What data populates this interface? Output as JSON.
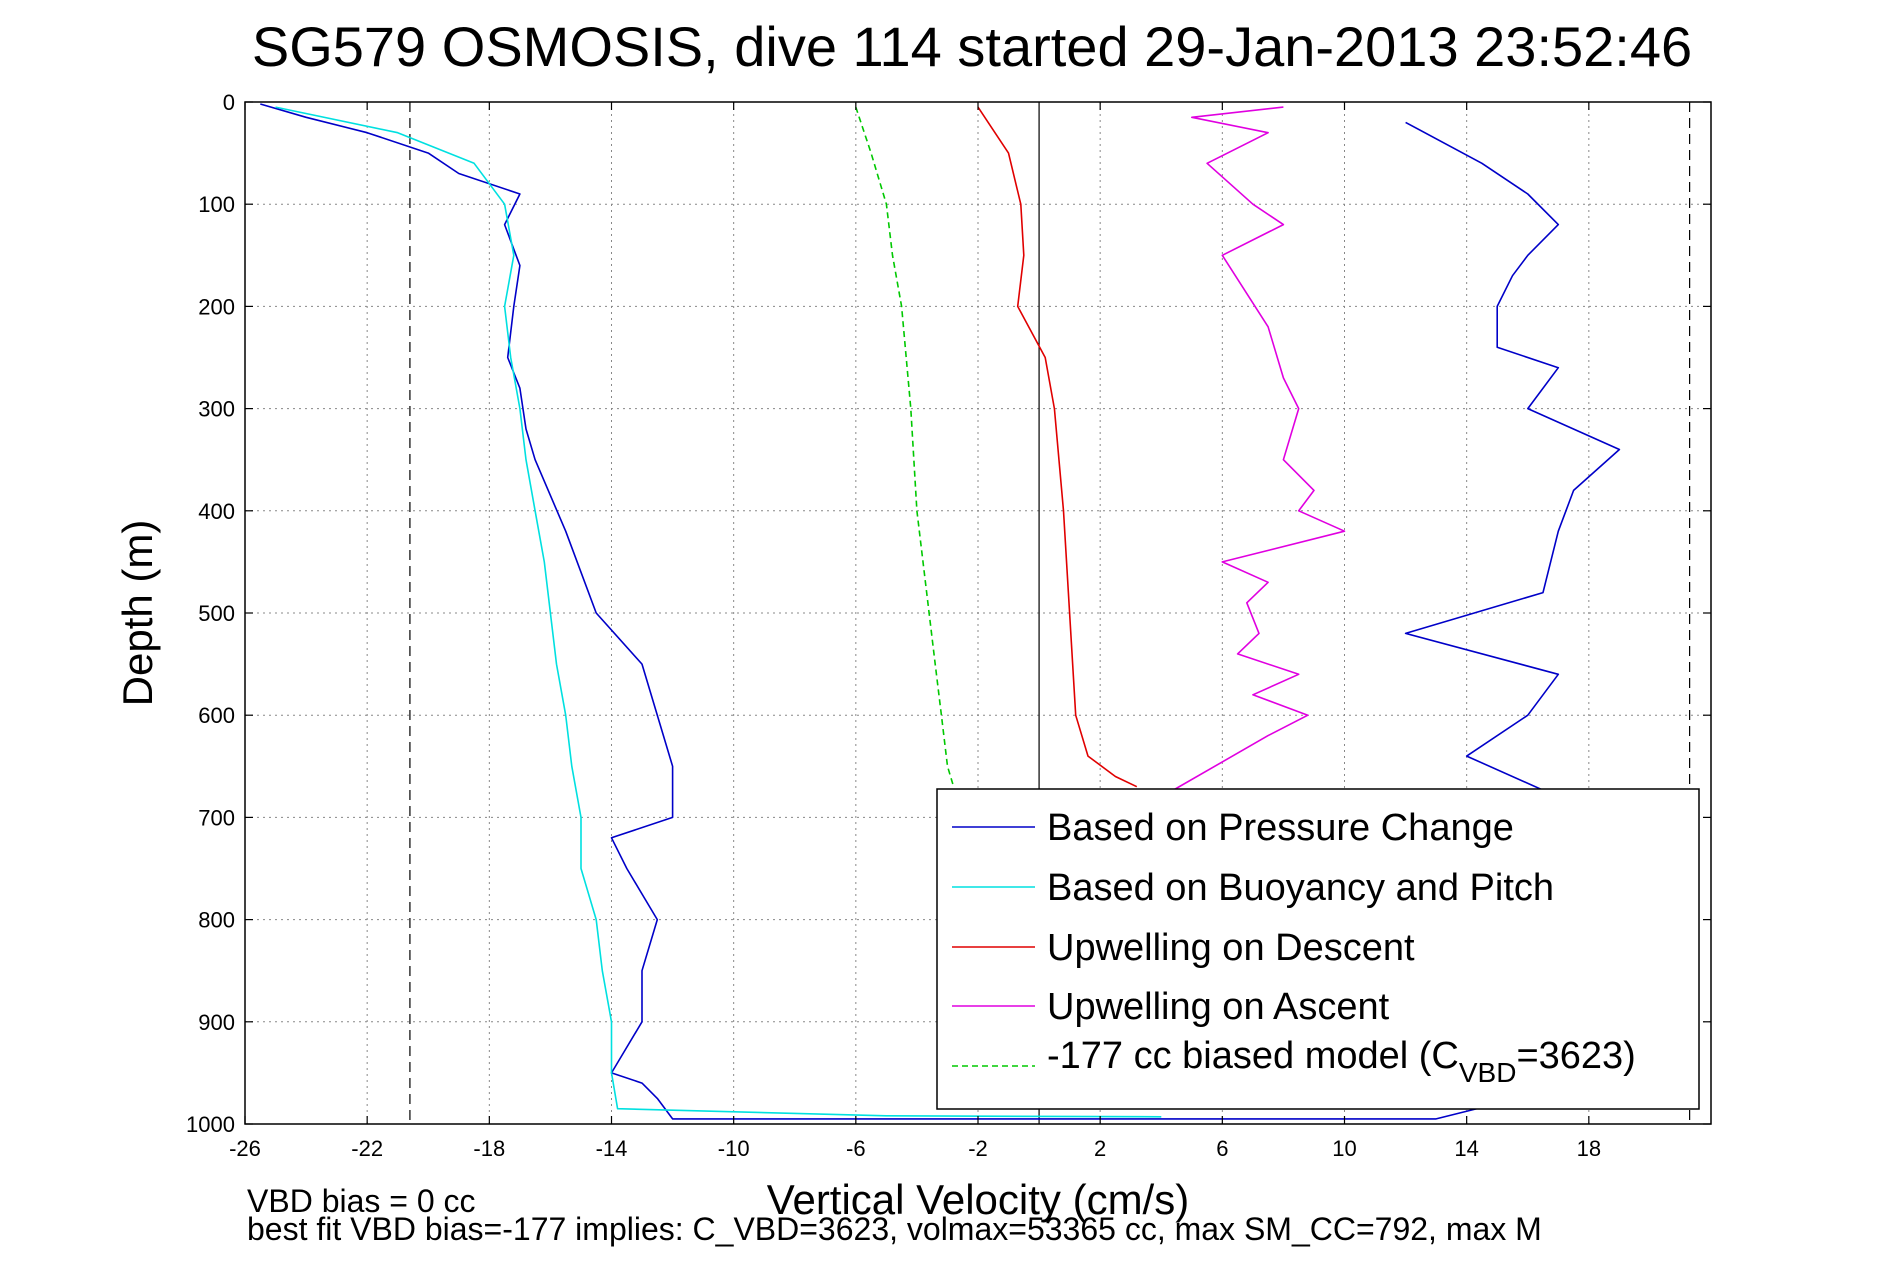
{
  "chart_data": {
    "type": "line",
    "title": "SG579 OSMOSIS, dive 114 started 29-Jan-2013 23:52:46",
    "xlabel": "Vertical Velocity (cm/s)",
    "ylabel": "Depth (m)",
    "xlim": [
      -26,
      22
    ],
    "ylim": [
      0,
      1000
    ],
    "y_reversed": true,
    "grid": true,
    "legend_position": "bottom-right",
    "x_ticks": [
      -26,
      -22,
      -18,
      -14,
      -10,
      -6,
      -2,
      2,
      6,
      10,
      14,
      18
    ],
    "y_ticks": [
      0,
      100,
      200,
      300,
      400,
      500,
      600,
      700,
      800,
      900,
      1000
    ],
    "reference_lines": [
      -20.6,
      0,
      21.3
    ],
    "annotations": [
      "VBD bias = 0 cc",
      "best fit VBD bias=-177 implies: C_VBD=3623, volmax=53365 cc, max SM_CC=792, max M"
    ],
    "series": [
      {
        "name": "Based on Pressure Change",
        "color": "#0000c8",
        "style": "solid",
        "x": [
          -25.5,
          -24,
          -22,
          -20,
          -19,
          -17,
          -17.5,
          -17,
          -17.2,
          -17.4,
          -17,
          -16.8,
          -16.5,
          -15.5,
          -14.5,
          -13,
          -12,
          -12,
          -14,
          -13.5,
          -12.5,
          -13,
          -13,
          -14,
          -13,
          -12.5,
          -12,
          13,
          15,
          17,
          14,
          16,
          17,
          12,
          16.5,
          17,
          17.5,
          19,
          16,
          17,
          15,
          15,
          15,
          15.5,
          16,
          17,
          16,
          14.5,
          12
        ],
        "y": [
          2,
          15,
          30,
          50,
          70,
          90,
          120,
          160,
          200,
          250,
          280,
          320,
          350,
          420,
          500,
          550,
          650,
          700,
          720,
          750,
          800,
          850,
          900,
          950,
          960,
          975,
          995,
          995,
          980,
          680,
          640,
          600,
          560,
          520,
          480,
          420,
          380,
          340,
          300,
          260,
          240,
          220,
          200,
          170,
          150,
          120,
          90,
          60,
          20
        ]
      },
      {
        "name": "Based on Buoyancy and Pitch",
        "color": "#00e0e0",
        "style": "solid",
        "x": [
          -25,
          -21,
          -18.5,
          -17.5,
          -17.2,
          -17.5,
          -17.3,
          -17,
          -16.8,
          -16.5,
          -16.2,
          -16,
          -15.8,
          -15.5,
          -15.3,
          -15,
          -15,
          -14.5,
          -14.3,
          -14,
          -14,
          -13.8,
          -5,
          4
        ],
        "y": [
          5,
          30,
          60,
          100,
          150,
          200,
          250,
          300,
          350,
          400,
          450,
          500,
          550,
          600,
          650,
          700,
          750,
          800,
          850,
          900,
          950,
          985,
          992,
          993
        ]
      },
      {
        "name": "Upwelling on Descent",
        "color": "#e00000",
        "style": "solid",
        "x": [
          -2,
          -1,
          -0.6,
          -0.5,
          -0.7,
          0.2,
          0.5,
          0.8,
          1,
          1.2,
          1.6,
          2.5,
          3.2
        ],
        "y": [
          5,
          50,
          100,
          150,
          200,
          250,
          300,
          400,
          500,
          600,
          640,
          660,
          670
        ]
      },
      {
        "name": "Upwelling on Ascent",
        "color": "#e000e0",
        "style": "solid",
        "x": [
          4,
          7.5,
          8.8,
          7,
          8.5,
          6.5,
          7.2,
          6.8,
          7.5,
          6,
          10,
          8.5,
          9,
          8,
          8.5,
          8,
          7.5,
          6,
          8,
          7,
          5.5,
          7.5,
          5,
          8
        ],
        "y": [
          680,
          620,
          600,
          580,
          560,
          540,
          520,
          490,
          470,
          450,
          420,
          400,
          380,
          350,
          300,
          270,
          220,
          150,
          120,
          100,
          60,
          30,
          15,
          5
        ]
      },
      {
        "name": "-177 cc biased model (C_VBD=3623)",
        "color": "#00c800",
        "style": "dashed",
        "x": [
          -6,
          -5.5,
          -5,
          -4.8,
          -4.5,
          -4.2,
          -4,
          -3.8,
          -3.6,
          -3.4,
          -3.2,
          -3,
          -2.8
        ],
        "y": [
          5,
          50,
          100,
          150,
          200,
          300,
          400,
          450,
          500,
          550,
          600,
          650,
          670
        ]
      }
    ],
    "legend_labels": {
      "s0": "Based on Pressure Change",
      "s1": "Based on Buoyancy and Pitch",
      "s2": "Upwelling on Descent",
      "s3": "Upwelling on Ascent",
      "s4_prefix": "-177 cc biased model (C",
      "s4_sub": "VBD",
      "s4_suffix": "=3623)"
    }
  }
}
